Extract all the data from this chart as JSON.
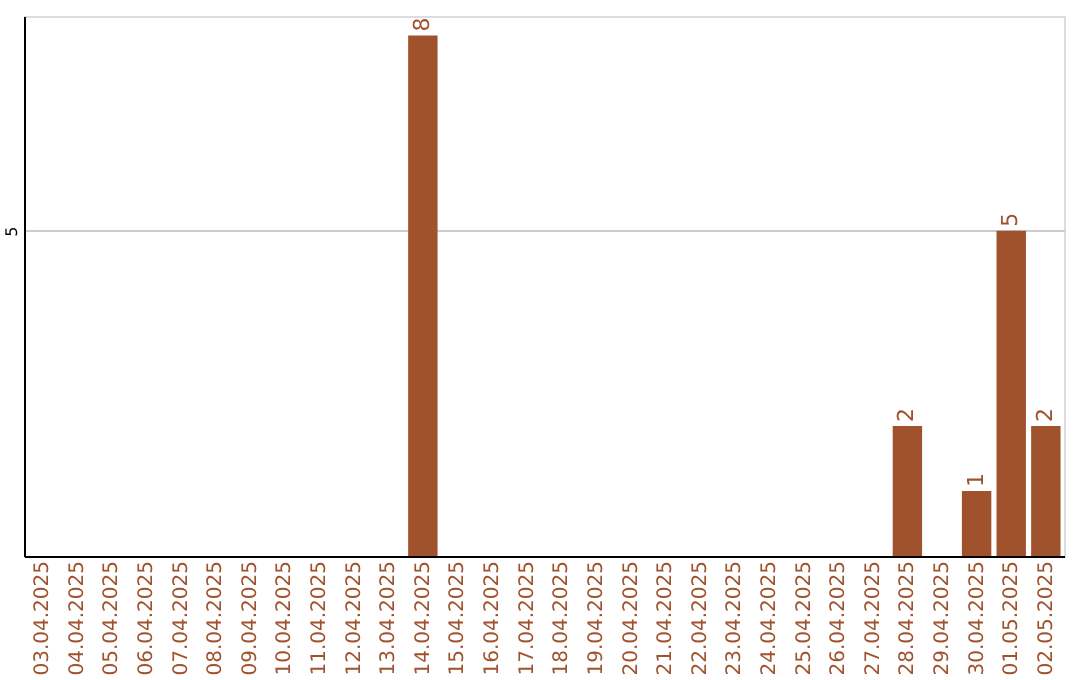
{
  "chart_data": {
    "type": "bar",
    "categories": [
      "03.04.2025",
      "04.04.2025",
      "05.04.2025",
      "06.04.2025",
      "07.04.2025",
      "08.04.2025",
      "09.04.2025",
      "10.04.2025",
      "11.04.2025",
      "12.04.2025",
      "13.04.2025",
      "14.04.2025",
      "15.04.2025",
      "16.04.2025",
      "17.04.2025",
      "18.04.2025",
      "19.04.2025",
      "20.04.2025",
      "21.04.2025",
      "22.04.2025",
      "23.04.2025",
      "24.04.2025",
      "25.04.2025",
      "26.04.2025",
      "27.04.2025",
      "28.04.2025",
      "29.04.2025",
      "30.04.2025",
      "01.05.2025",
      "02.05.2025"
    ],
    "values": [
      0,
      0,
      0,
      0,
      0,
      0,
      0,
      0,
      0,
      0,
      0,
      8,
      0,
      0,
      0,
      0,
      0,
      0,
      0,
      0,
      0,
      0,
      0,
      0,
      0,
      2,
      0,
      1,
      5,
      2
    ],
    "value_labels": [
      null,
      null,
      null,
      null,
      null,
      null,
      null,
      null,
      null,
      null,
      null,
      "8",
      null,
      null,
      null,
      null,
      null,
      null,
      null,
      null,
      null,
      null,
      null,
      null,
      null,
      "2",
      null,
      "1",
      "5",
      "2"
    ],
    "color": "#a0522d",
    "ylim": [
      0,
      8.3
    ],
    "yticks": [
      5
    ],
    "grid": "y"
  }
}
